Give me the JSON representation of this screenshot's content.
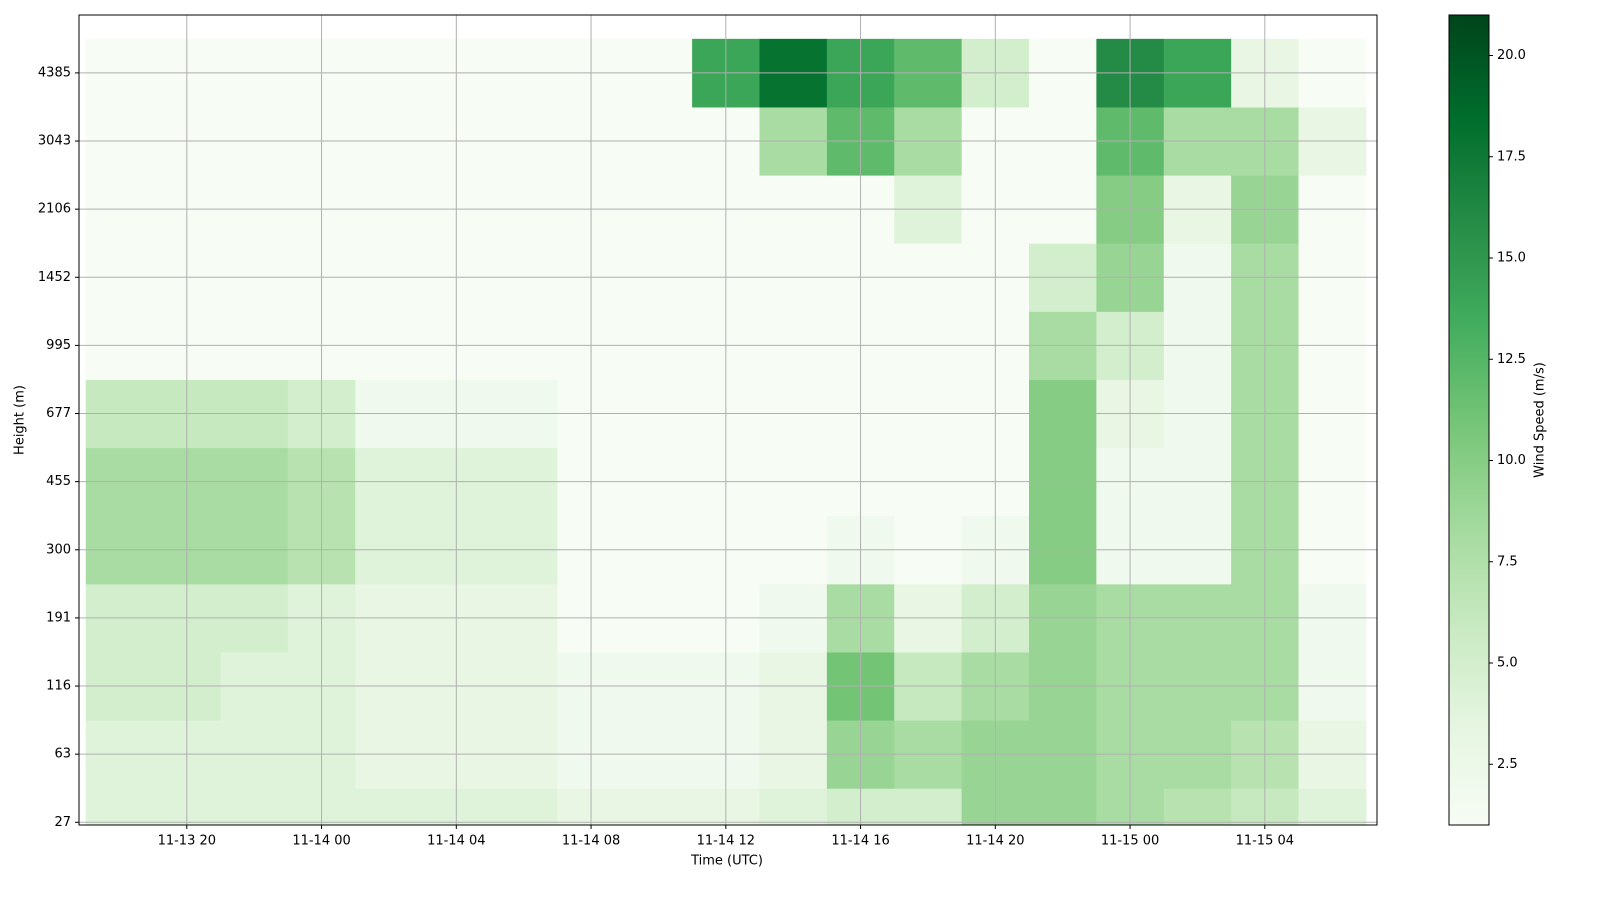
{
  "chart_data": {
    "type": "heatmap",
    "xlabel": "Time (UTC)",
    "ylabel": "Height (m)",
    "colorbar_label": "Wind Speed (m/s)",
    "xlim": [
      16.8,
      55.33
    ],
    "xticks": [
      {
        "value": 20,
        "label": "11-13 20"
      },
      {
        "value": 24,
        "label": "11-14 00"
      },
      {
        "value": 28,
        "label": "11-14 04"
      },
      {
        "value": 32,
        "label": "11-14 08"
      },
      {
        "value": 36,
        "label": "11-14 12"
      },
      {
        "value": 40,
        "label": "11-14 16"
      },
      {
        "value": 44,
        "label": "11-14 20"
      },
      {
        "value": 48,
        "label": "11-15 00"
      },
      {
        "value": 52,
        "label": "11-15 04"
      }
    ],
    "ylim": [
      -0.04,
      11.85
    ],
    "yticks": [
      {
        "value": 0,
        "label": "27"
      },
      {
        "value": 1,
        "label": "63"
      },
      {
        "value": 2,
        "label": "116"
      },
      {
        "value": 3,
        "label": "191"
      },
      {
        "value": 4,
        "label": "300"
      },
      {
        "value": 5,
        "label": "455"
      },
      {
        "value": 6,
        "label": "677"
      },
      {
        "value": 7,
        "label": "995"
      },
      {
        "value": 8,
        "label": "1452"
      },
      {
        "value": 9,
        "label": "2106"
      },
      {
        "value": 10,
        "label": "3043"
      },
      {
        "value": 11,
        "label": "4385"
      }
    ],
    "x_edges": [
      17,
      19,
      21,
      23,
      25,
      27,
      29,
      31,
      33,
      35,
      37,
      39,
      41,
      43,
      45,
      47,
      49,
      51,
      53,
      55
    ],
    "z": [
      [
        4,
        4,
        5,
        5,
        8,
        8,
        6,
        1,
        1,
        1,
        1,
        1
      ],
      [
        4,
        4,
        5,
        5,
        8,
        8,
        6,
        1,
        1,
        1,
        1,
        1
      ],
      [
        4,
        4,
        4,
        5,
        8,
        8,
        6,
        1,
        1,
        1,
        1,
        1
      ],
      [
        4,
        4,
        4,
        4,
        7,
        7,
        5,
        1,
        1,
        1,
        1,
        1
      ],
      [
        4,
        3,
        3,
        3,
        4,
        4,
        2,
        1,
        1,
        1,
        1,
        1
      ],
      [
        4,
        3,
        3,
        3,
        4,
        4,
        2,
        1,
        1,
        1,
        1,
        1
      ],
      [
        4,
        3,
        3,
        3,
        4,
        4,
        2,
        1,
        1,
        1,
        1,
        1
      ],
      [
        3,
        2,
        2,
        1,
        1,
        1,
        1,
        1,
        1,
        1,
        1,
        1
      ],
      [
        3,
        2,
        2,
        1,
        1,
        1,
        1,
        1,
        1,
        1,
        1,
        1
      ],
      [
        3,
        2,
        2,
        1,
        1,
        1,
        1,
        1,
        1,
        1,
        1,
        14
      ],
      [
        4,
        3,
        3,
        2,
        1,
        1,
        1,
        1,
        1,
        1,
        8,
        18
      ],
      [
        5,
        9,
        11,
        8,
        2,
        1,
        1,
        1,
        1,
        1,
        12,
        14
      ],
      [
        5,
        8,
        6,
        3,
        1,
        1,
        1,
        1,
        1,
        4,
        8,
        12
      ],
      [
        9,
        9,
        8,
        5,
        2,
        1,
        1,
        1,
        1,
        1,
        1,
        5
      ],
      [
        9,
        9,
        9,
        9,
        10,
        10,
        10,
        8,
        5,
        1,
        1,
        1
      ],
      [
        8,
        8,
        8,
        8,
        2,
        2,
        3,
        5,
        9,
        10,
        12,
        16
      ],
      [
        7,
        8,
        8,
        8,
        2,
        2,
        2,
        2,
        2,
        3,
        8,
        14
      ],
      [
        6,
        7,
        8,
        8,
        8,
        8,
        8,
        8,
        8,
        9,
        8,
        3
      ],
      [
        4,
        3,
        2,
        2,
        1,
        1,
        1,
        1,
        1,
        1,
        3,
        1
      ]
    ],
    "clim": [
      1,
      21
    ],
    "cticks": [
      2.5,
      {
        "value": 5,
        "label": "5.0"
      },
      7.5,
      {
        "value": 10,
        "label": "10.0"
      },
      12.5,
      {
        "value": 15,
        "label": "15.0"
      },
      17.5,
      {
        "value": 20,
        "label": "20.0"
      }
    ],
    "colormap": [
      "#f7fcf5",
      "#e5f5e0",
      "#c7e9c0",
      "#a1d99b",
      "#74c476",
      "#41ab5d",
      "#238b45",
      "#006d2c",
      "#00441b"
    ],
    "grid": true
  }
}
